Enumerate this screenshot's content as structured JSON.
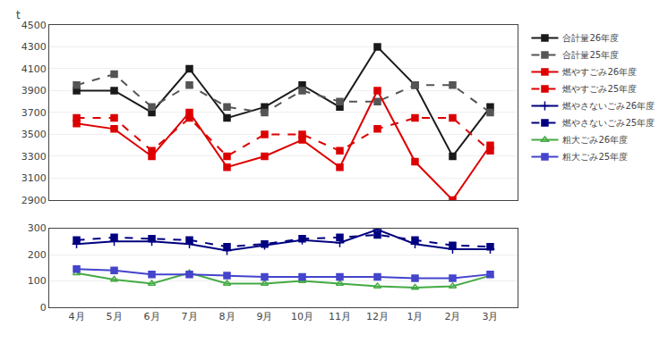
{
  "chart_data": [
    {
      "type": "line",
      "ylabel": "t",
      "categories": [
        "4月",
        "5月",
        "6月",
        "7月",
        "8月",
        "9月",
        "10月",
        "11月",
        "12月",
        "1月",
        "2月",
        "3月"
      ],
      "ylim": [
        2900,
        4500
      ],
      "yticks": [
        2900,
        3100,
        3300,
        3500,
        3700,
        3900,
        4100,
        4300,
        4500
      ],
      "grid": true,
      "tick_labels": "y",
      "series": [
        {
          "name": "合計量26年度",
          "color": "#1a1a1a",
          "marker": "square",
          "line_style": "solid",
          "values": [
            3900,
            3900,
            3700,
            4100,
            3650,
            3750,
            3950,
            3750,
            4300,
            3950,
            3300,
            3750
          ]
        },
        {
          "name": "合計量25年度",
          "color": "#555555",
          "marker": "square",
          "line_style": "dashed",
          "values": [
            3950,
            4050,
            3750,
            3950,
            3750,
            3700,
            3900,
            3800,
            3800,
            3950,
            3950,
            3700
          ]
        },
        {
          "name": "燃やすごみ26年度",
          "color": "#dd0000",
          "marker": "square",
          "line_style": "solid",
          "values": [
            3600,
            3550,
            3300,
            3700,
            3200,
            3300,
            3450,
            3200,
            3900,
            3250,
            2900,
            3400
          ]
        },
        {
          "name": "燃やすごみ25年度",
          "color": "#dd0000",
          "marker": "square",
          "line_style": "dashed",
          "values": [
            3650,
            3650,
            3350,
            3650,
            3300,
            3500,
            3500,
            3350,
            3550,
            3650,
            3650,
            3350
          ]
        }
      ]
    },
    {
      "type": "line",
      "categories": [
        "4月",
        "5月",
        "6月",
        "7月",
        "8月",
        "9月",
        "10月",
        "11月",
        "12月",
        "1月",
        "2月",
        "3月"
      ],
      "ylim": [
        0,
        300
      ],
      "yticks": [
        0,
        100,
        200,
        300
      ],
      "grid": true,
      "series": [
        {
          "name": "燃やさないごみ26年度",
          "color": "#000080",
          "marker": "plus",
          "line_style": "solid",
          "values": [
            240,
            250,
            250,
            240,
            215,
            235,
            255,
            245,
            295,
            240,
            220,
            220
          ]
        },
        {
          "name": "燃やさないごみ25年度",
          "color": "#000080",
          "marker": "square",
          "line_style": "dashed",
          "values": [
            255,
            265,
            260,
            255,
            230,
            240,
            260,
            265,
            275,
            255,
            235,
            230
          ]
        },
        {
          "name": "粗大ごみ26年度",
          "color": "#44aa44",
          "marker": "triangle-open",
          "line_style": "solid",
          "values": [
            130,
            105,
            90,
            130,
            90,
            90,
            100,
            90,
            80,
            75,
            80,
            120
          ]
        },
        {
          "name": "粗大ごみ25年度",
          "color": "#4444cc",
          "marker": "square",
          "line_style": "solid",
          "values": [
            145,
            140,
            125,
            125,
            120,
            115,
            115,
            115,
            115,
            110,
            110,
            125
          ]
        }
      ]
    }
  ]
}
